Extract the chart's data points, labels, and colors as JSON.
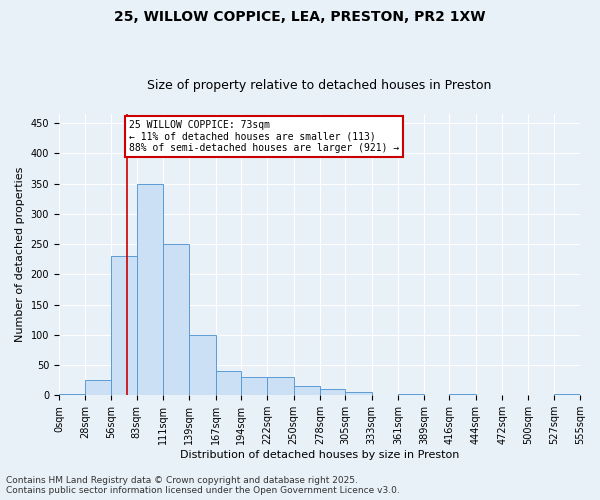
{
  "title1": "25, WILLOW COPPICE, LEA, PRESTON, PR2 1XW",
  "title2": "Size of property relative to detached houses in Preston",
  "xlabel": "Distribution of detached houses by size in Preston",
  "ylabel": "Number of detached properties",
  "bar_values": [
    2,
    25,
    230,
    350,
    250,
    100,
    40,
    30,
    30,
    15,
    10,
    5,
    0,
    2,
    0,
    2,
    0,
    0,
    0,
    2
  ],
  "bin_edges": [
    0,
    28,
    56,
    83,
    111,
    139,
    167,
    194,
    222,
    250,
    278,
    305,
    333,
    361,
    389,
    416,
    444,
    472,
    500,
    527,
    555
  ],
  "tick_labels": [
    "0sqm",
    "28sqm",
    "56sqm",
    "83sqm",
    "111sqm",
    "139sqm",
    "167sqm",
    "194sqm",
    "222sqm",
    "250sqm",
    "278sqm",
    "305sqm",
    "333sqm",
    "361sqm",
    "389sqm",
    "416sqm",
    "444sqm",
    "472sqm",
    "500sqm",
    "527sqm",
    "555sqm"
  ],
  "bar_color": "#cce0f5",
  "bar_edge_color": "#5b9bd5",
  "vline_x": 73,
  "vline_color": "#cc0000",
  "annotation_line1": "25 WILLOW COPPICE: 73sqm",
  "annotation_line2": "← 11% of detached houses are smaller (113)",
  "annotation_line3": "88% of semi-detached houses are larger (921) →",
  "annotation_box_color": "#ffffff",
  "annotation_border_color": "#cc0000",
  "ylim": [
    0,
    465
  ],
  "yticks": [
    0,
    50,
    100,
    150,
    200,
    250,
    300,
    350,
    400,
    450
  ],
  "background_color": "#e8f0f8",
  "footer_line1": "Contains HM Land Registry data © Crown copyright and database right 2025.",
  "footer_line2": "Contains public sector information licensed under the Open Government Licence v3.0.",
  "title1_fontsize": 10,
  "title2_fontsize": 9,
  "axis_label_fontsize": 8,
  "tick_fontsize": 7,
  "annotation_fontsize": 7,
  "footer_fontsize": 6.5
}
